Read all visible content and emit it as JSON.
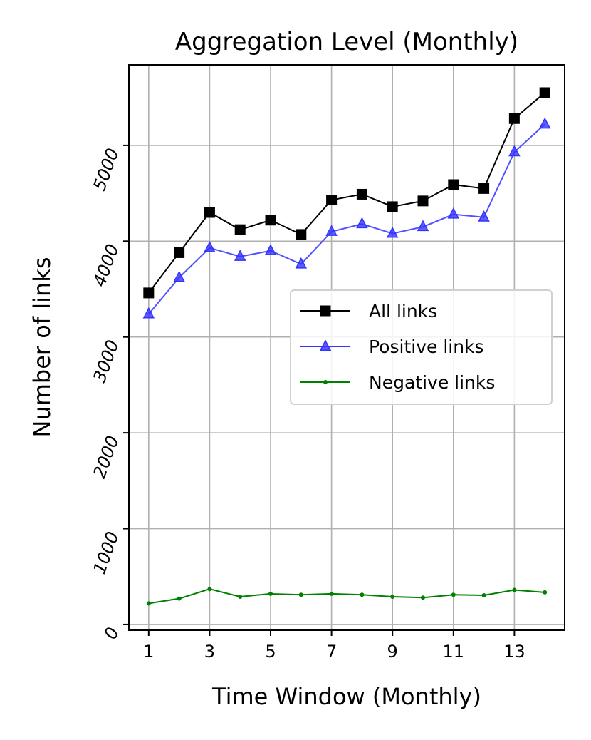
{
  "chart_data": {
    "type": "line",
    "title": "Aggregation Level (Monthly)",
    "xlabel": "Time Window (Monthly)",
    "ylabel": "Number of links",
    "x": [
      1,
      2,
      3,
      4,
      5,
      6,
      7,
      8,
      9,
      10,
      11,
      12,
      13,
      14
    ],
    "xticks": [
      "1",
      "3",
      "5",
      "7",
      "9",
      "11",
      "13"
    ],
    "yticks": [
      "0",
      "1000",
      "2000",
      "3000",
      "4000",
      "5000"
    ],
    "xlim": [
      0.35,
      14.65
    ],
    "ylim": [
      -60,
      5840
    ],
    "grid": true,
    "legend_position": "center-right",
    "series": [
      {
        "name": "All links",
        "color": "#000000",
        "marker": "square",
        "values": [
          3460,
          3880,
          4300,
          4120,
          4220,
          4070,
          4430,
          4490,
          4360,
          4420,
          4590,
          4550,
          5280,
          5550
        ]
      },
      {
        "name": "Positive links",
        "color": "#3333ff",
        "marker": "triangle",
        "values": [
          3240,
          3620,
          3930,
          3840,
          3900,
          3760,
          4100,
          4180,
          4080,
          4150,
          4280,
          4250,
          4930,
          5220
        ]
      },
      {
        "name": "Negative links",
        "color": "#008000",
        "marker": "circle",
        "values": [
          220,
          270,
          370,
          290,
          320,
          310,
          320,
          310,
          290,
          280,
          310,
          305,
          360,
          335
        ]
      }
    ]
  }
}
